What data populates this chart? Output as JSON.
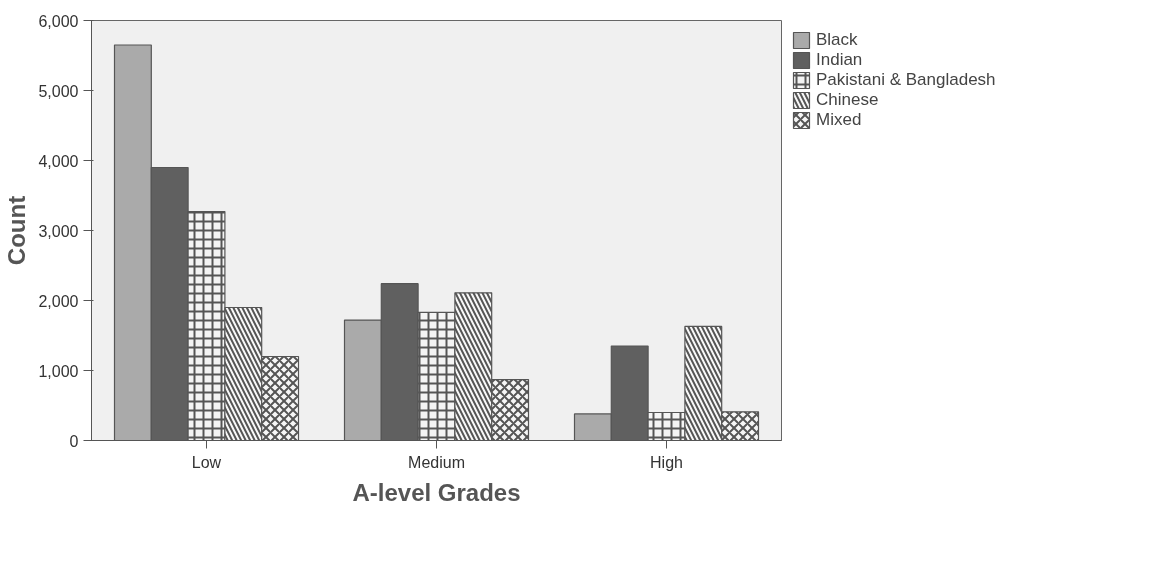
{
  "chart_data": {
    "type": "bar",
    "xlabel": "A-level Grades",
    "ylabel": "Count",
    "categories": [
      "Low",
      "Medium",
      "High"
    ],
    "series": [
      {
        "name": "Black",
        "color": "#aaaaaa",
        "values": [
          5650,
          1720,
          380
        ]
      },
      {
        "name": "Indian",
        "color": "#606060",
        "values": [
          3900,
          2240,
          1350
        ]
      },
      {
        "name": "Pakistani & Bangladesh",
        "color": "#f4f4f4",
        "values": [
          3270,
          1830,
          400
        ]
      },
      {
        "name": "Chinese",
        "color": "#f8f8f8",
        "values": [
          1900,
          2110,
          1630
        ]
      },
      {
        "name": "Mixed",
        "color": "#f6f6f6",
        "values": [
          1200,
          870,
          410
        ]
      }
    ],
    "ylim": [
      0,
      6000
    ],
    "yticks": [
      {
        "value": 0,
        "label": "0"
      },
      {
        "value": 1000,
        "label": "1,000"
      },
      {
        "value": 2000,
        "label": "2,000"
      },
      {
        "value": 3000,
        "label": "3,000"
      },
      {
        "value": 4000,
        "label": "4,000"
      },
      {
        "value": 5000,
        "label": "5,000"
      },
      {
        "value": 6000,
        "label": "6,000"
      }
    ],
    "grid": false,
    "legend": "right"
  }
}
